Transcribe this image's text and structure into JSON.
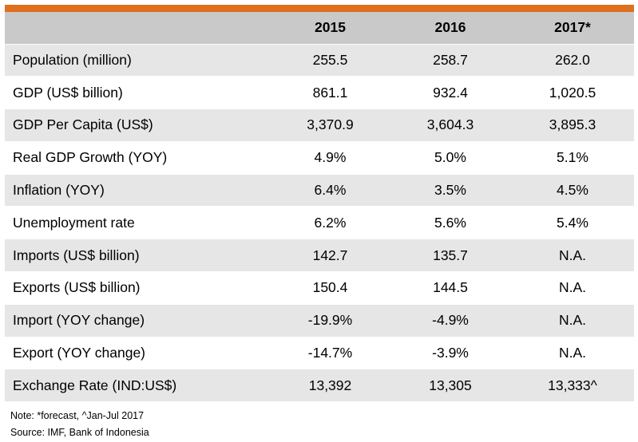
{
  "header": {
    "col0": "",
    "years": [
      "2015",
      "2016",
      "2017*"
    ]
  },
  "rows": [
    {
      "label": "Population (million)",
      "values": [
        "255.5",
        "258.7",
        "262.0"
      ]
    },
    {
      "label": "GDP (US$ billion)",
      "values": [
        "861.1",
        "932.4",
        "1,020.5"
      ]
    },
    {
      "label": "GDP Per Capita (US$)",
      "values": [
        "3,370.9",
        "3,604.3",
        "3,895.3"
      ]
    },
    {
      "label": "Real GDP Growth (YOY)",
      "values": [
        "4.9%",
        "5.0%",
        "5.1%"
      ]
    },
    {
      "label": "Inflation (YOY)",
      "values": [
        "6.4%",
        "3.5%",
        "4.5%"
      ]
    },
    {
      "label": "Unemployment rate",
      "values": [
        "6.2%",
        "5.6%",
        "5.4%"
      ]
    },
    {
      "label": "Imports (US$ billion)",
      "values": [
        "142.7",
        "135.7",
        "N.A."
      ]
    },
    {
      "label": "Exports (US$ billion)",
      "values": [
        "150.4",
        "144.5",
        "N.A."
      ]
    },
    {
      "label": "Import (YOY change)",
      "values": [
        "-19.9%",
        "-4.9%",
        "N.A."
      ]
    },
    {
      "label": "Export (YOY change)",
      "values": [
        "-14.7%",
        "-3.9%",
        "N.A."
      ]
    },
    {
      "label": "Exchange Rate (IND:US$)",
      "values": [
        "13,392",
        "13,305",
        "13,333^"
      ]
    }
  ],
  "notes": {
    "note": "Note: *forecast, ^Jan-Jul 2017",
    "source": "Source: IMF, Bank of Indonesia"
  },
  "colors": {
    "accent_bar": "#e0701e",
    "header_bg": "#c9c9c9",
    "shaded_row_bg": "#e6e6e6"
  }
}
